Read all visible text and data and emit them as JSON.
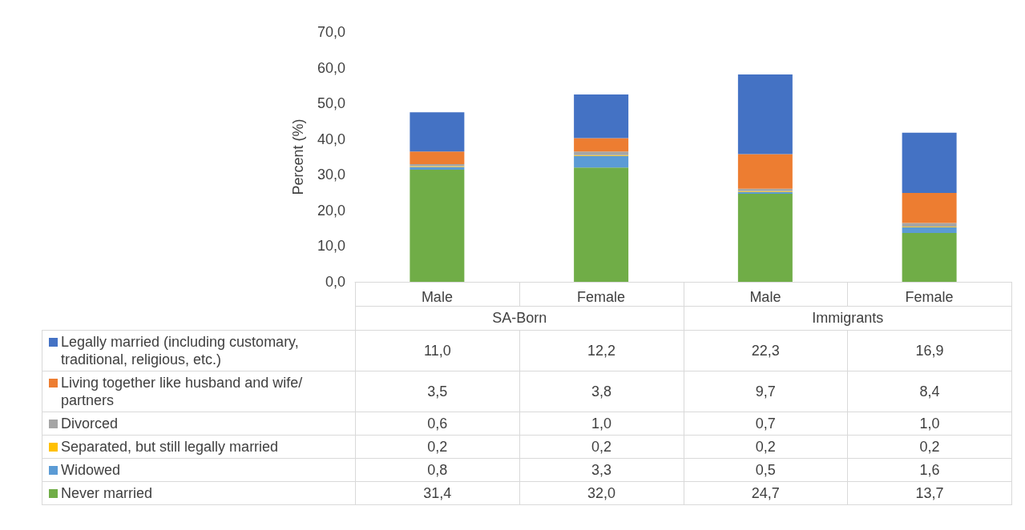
{
  "chart_data": {
    "type": "bar",
    "stacked": true,
    "ylabel": "Percent (%)",
    "categories": [
      "Male",
      "Female",
      "Male",
      "Female"
    ],
    "annotations": [
      "SA-Born",
      "Immigrants"
    ],
    "ylim": [
      0,
      70
    ],
    "yticks": [
      {
        "value": 0,
        "label": "0,0"
      },
      {
        "value": 10,
        "label": "10,0"
      },
      {
        "value": 20,
        "label": "20,0"
      },
      {
        "value": 30,
        "label": "30,0"
      },
      {
        "value": 40,
        "label": "40,0"
      },
      {
        "value": 50,
        "label": "50,0"
      },
      {
        "value": 60,
        "label": "60,0"
      },
      {
        "value": 70,
        "label": "70,0"
      }
    ],
    "grid": false,
    "legend": "bottom",
    "series": [
      {
        "name": "Never married",
        "color": "#70ad47",
        "values": [
          31.4,
          32.0,
          24.7,
          13.7
        ],
        "value_labels": [
          "31,4",
          "32,0",
          "24,7",
          "13,7"
        ]
      },
      {
        "name": "Widowed",
        "color": "#5b9bd5",
        "values": [
          0.8,
          3.3,
          0.5,
          1.6
        ],
        "value_labels": [
          "0,8",
          "3,3",
          "0,5",
          "1,6"
        ]
      },
      {
        "name": "Separated, but still legally married",
        "color": "#ffc000",
        "values": [
          0.2,
          0.2,
          0.2,
          0.2
        ],
        "value_labels": [
          "0,2",
          "0,2",
          "0,2",
          "0,2"
        ]
      },
      {
        "name": "Divorced",
        "color": "#a5a5a5",
        "values": [
          0.6,
          1.0,
          0.7,
          1.0
        ],
        "value_labels": [
          "0,6",
          "1,0",
          "0,7",
          "1,0"
        ]
      },
      {
        "name": "Living together like husband and wife/ partners",
        "color": "#ed7d31",
        "values": [
          3.5,
          3.8,
          9.7,
          8.4
        ],
        "value_labels": [
          "3,5",
          "3,8",
          "9,7",
          "8,4"
        ]
      },
      {
        "name": "Legally married (including customary, traditional, religious, etc.)",
        "color": "#4472c4",
        "values": [
          11.0,
          12.2,
          22.3,
          16.9
        ],
        "value_labels": [
          "11,0",
          "12,2",
          "22,3",
          "16,9"
        ]
      }
    ]
  }
}
